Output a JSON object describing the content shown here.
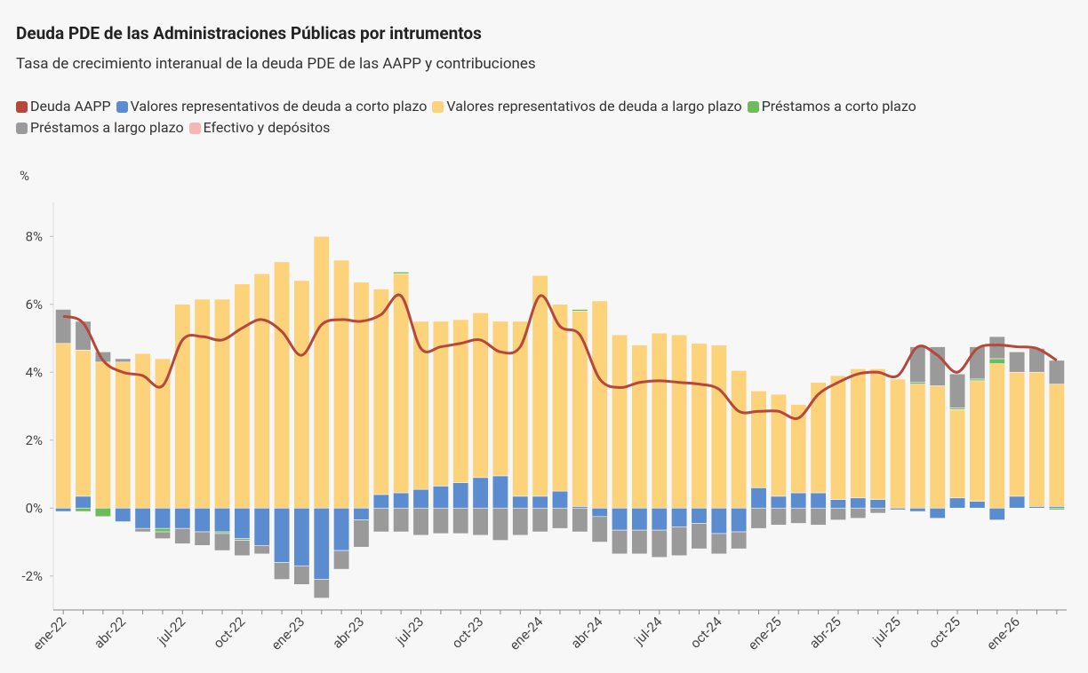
{
  "chart_data": {
    "type": "bar",
    "title": "Deuda PDE de las Administraciones Públicas por intrumentos",
    "subtitle": "Tasa de crecimiento interanual de la deuda PDE de las AAPP y contribuciones",
    "y_label": "%",
    "categories": [
      "ene-22",
      null,
      null,
      "abr-22",
      null,
      null,
      "jul-22",
      null,
      null,
      "oct-22",
      null,
      null,
      "ene-23",
      null,
      null,
      "abr-23",
      null,
      null,
      "jul-23",
      null,
      null,
      "oct-23",
      null,
      null,
      "ene-24",
      null,
      null,
      "abr-24",
      null,
      null,
      "jul-24",
      null,
      null,
      "oct-24",
      null,
      null,
      "ene-25",
      null,
      null,
      "abr-25",
      null,
      null,
      "jul-25",
      null,
      null,
      "oct-25",
      null,
      null,
      "ene-26",
      null,
      null
    ],
    "ylim": [
      -3,
      9
    ],
    "yticks": [
      {
        "value": -2,
        "label": "-2%"
      },
      {
        "value": 0,
        "label": "0%"
      },
      {
        "value": 2,
        "label": "2%"
      },
      {
        "value": 4,
        "label": "4%"
      },
      {
        "value": 6,
        "label": "6%"
      },
      {
        "value": 8,
        "label": "8%"
      }
    ],
    "grid": false,
    "stacked": true,
    "series": [
      {
        "name": "Deuda AAPP",
        "color": "#b5483a",
        "type": "line",
        "values": [
          5.65,
          5.45,
          4.35,
          4.0,
          3.9,
          3.6,
          4.95,
          5.05,
          4.95,
          5.3,
          5.55,
          5.2,
          4.5,
          5.4,
          5.55,
          5.5,
          5.7,
          6.25,
          4.7,
          4.75,
          4.85,
          4.95,
          4.6,
          4.75,
          6.25,
          5.35,
          5.1,
          3.8,
          3.55,
          3.7,
          3.75,
          3.7,
          3.65,
          3.5,
          2.85,
          2.85,
          2.85,
          2.65,
          3.35,
          3.7,
          3.95,
          4.0,
          3.9,
          4.75,
          4.5,
          4.0,
          4.7,
          4.8,
          4.75,
          4.7,
          4.35
        ]
      },
      {
        "name": "Valores representativos de deuda a corto plazo",
        "color": "#5b8ccf",
        "values": [
          -0.1,
          0.35,
          0,
          -0.4,
          -0.6,
          -0.6,
          -0.6,
          -0.7,
          -0.7,
          -0.9,
          -1.1,
          -1.6,
          -1.7,
          -2.1,
          -1.25,
          -0.35,
          0.4,
          0.45,
          0.55,
          0.65,
          0.75,
          0.9,
          0.95,
          0.35,
          0.35,
          0.5,
          0.05,
          -0.25,
          -0.65,
          -0.65,
          -0.65,
          -0.55,
          -0.45,
          -0.75,
          -0.7,
          0.6,
          0.35,
          0.45,
          0.45,
          0.25,
          0.3,
          0.25,
          -0.05,
          -0.1,
          -0.3,
          0.3,
          0.2,
          -0.35,
          0.35,
          0.05,
          0.05
        ]
      },
      {
        "name": "Valores representativos de deuda a largo plazo",
        "color": "#fcd27a",
        "values": [
          4.85,
          4.3,
          4.3,
          4.3,
          4.55,
          4.4,
          6.0,
          6.15,
          6.15,
          6.6,
          6.9,
          7.25,
          6.7,
          8.0,
          7.3,
          6.65,
          6.05,
          6.45,
          4.95,
          4.85,
          4.8,
          4.85,
          4.55,
          5.15,
          6.5,
          5.5,
          5.75,
          6.1,
          5.1,
          4.8,
          5.15,
          5.1,
          4.85,
          4.8,
          4.05,
          2.85,
          3.0,
          2.6,
          3.25,
          3.65,
          3.8,
          3.85,
          3.8,
          3.65,
          3.6,
          2.6,
          3.55,
          4.25,
          3.65,
          3.95,
          3.6
        ]
      },
      {
        "name": "Préstamos a corto plazo",
        "color": "#6dbb5a",
        "values": [
          0,
          -0.1,
          -0.25,
          0,
          0,
          -0.1,
          0,
          0,
          -0.05,
          -0.05,
          0,
          0,
          0,
          0,
          0,
          0,
          0,
          0.05,
          0,
          0,
          0,
          0,
          0,
          0,
          0,
          0,
          0.05,
          0,
          0,
          0,
          0,
          0,
          0,
          0,
          0,
          0,
          0,
          0,
          0,
          0,
          0,
          0,
          0,
          0.05,
          0,
          0.05,
          0.05,
          0.15,
          0,
          0,
          -0.05
        ]
      },
      {
        "name": "Préstamos a largo plazo",
        "color": "#9a9a9a",
        "values": [
          1.0,
          0.85,
          0.3,
          0.1,
          -0.1,
          -0.2,
          -0.45,
          -0.4,
          -0.5,
          -0.45,
          -0.25,
          -0.5,
          -0.55,
          -0.55,
          -0.55,
          -0.8,
          -0.7,
          -0.7,
          -0.8,
          -0.75,
          -0.75,
          -0.8,
          -0.95,
          -0.8,
          -0.7,
          -0.6,
          -0.7,
          -0.75,
          -0.7,
          -0.7,
          -0.8,
          -0.85,
          -0.75,
          -0.6,
          -0.5,
          -0.6,
          -0.5,
          -0.45,
          -0.5,
          -0.35,
          -0.3,
          -0.15,
          0,
          1.05,
          1.15,
          1.0,
          0.95,
          0.65,
          0.6,
          0.7,
          0.7
        ]
      },
      {
        "name": "Efectivo y depósitos",
        "color": "#f4b6b6",
        "values": [
          0,
          0,
          0,
          0,
          0,
          0,
          0,
          0,
          0,
          0,
          0,
          0,
          0,
          0,
          0,
          0,
          0,
          0,
          0,
          0,
          0,
          0,
          0,
          0,
          0,
          0,
          0,
          0,
          0,
          0,
          0,
          0,
          0,
          0,
          0,
          0,
          0,
          0,
          0,
          0,
          0,
          0,
          0,
          0,
          0,
          0,
          0,
          0,
          0,
          0,
          0
        ]
      }
    ]
  }
}
